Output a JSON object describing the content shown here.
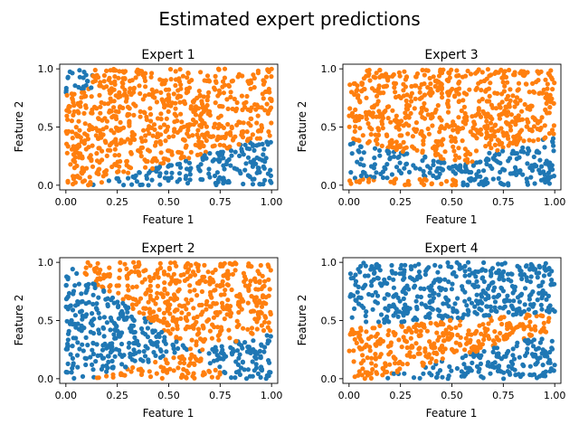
{
  "figure": {
    "suptitle": "Estimated expert predictions"
  },
  "colors": {
    "blue": "#1f77b4",
    "orange": "#ff7f0e"
  },
  "chart_data": [
    {
      "type": "scatter",
      "title": "Expert 1",
      "xlabel": "Feature 1",
      "ylabel": "Feature 2",
      "xlim": [
        -0.03,
        1.03
      ],
      "ylim": [
        -0.04,
        1.04
      ],
      "xticks": [
        0.0,
        0.25,
        0.5,
        0.75,
        1.0
      ],
      "xtick_labels": [
        "0.00",
        "0.25",
        "0.50",
        "0.75",
        "1.00"
      ],
      "yticks": [
        0.0,
        0.5,
        1.0
      ],
      "ytick_labels": [
        "0.0",
        "0.5",
        "1.0"
      ],
      "grid": false,
      "points_per_plot": 900,
      "region_rule": "blue where y < 0.45*x - 0.05 or (x < 0.14 and y > 0.8 + 0.6*(x - 0.02)) ; orange otherwise",
      "series": [
        {
          "color": "blue"
        },
        {
          "color": "orange"
        }
      ]
    },
    {
      "type": "scatter",
      "title": "Expert 3",
      "xlabel": "Feature 1",
      "ylabel": "Feature 2",
      "xlim": [
        -0.03,
        1.03
      ],
      "ylim": [
        -0.04,
        1.04
      ],
      "xticks": [
        0.0,
        0.25,
        0.5,
        0.75,
        1.0
      ],
      "xtick_labels": [
        "0.00",
        "0.25",
        "0.50",
        "0.75",
        "1.00"
      ],
      "yticks": [
        0.0,
        0.5,
        1.0
      ],
      "ytick_labels": [
        "0.0",
        "0.5",
        "1.0"
      ],
      "grid": false,
      "points_per_plot": 900,
      "region_rule": "blue where y < 0.5 - 0.5*x (upper boundary) and above lower line y > 0.45*x - 0.05, with orange strip near bottom-left; orange otherwise",
      "series": [
        {
          "color": "blue"
        },
        {
          "color": "orange"
        }
      ]
    },
    {
      "type": "scatter",
      "title": "Expert 2",
      "xlabel": "Feature 1",
      "ylabel": "Feature 2",
      "xlim": [
        -0.03,
        1.03
      ],
      "ylim": [
        -0.04,
        1.04
      ],
      "xticks": [
        0.0,
        0.25,
        0.5,
        0.75,
        1.0
      ],
      "xtick_labels": [
        "0.00",
        "0.25",
        "0.50",
        "0.75",
        "1.00"
      ],
      "yticks": [
        0.0,
        0.5,
        1.0
      ],
      "ytick_labels": [
        "0.0",
        "0.5",
        "1.0"
      ],
      "grid": false,
      "points_per_plot": 900,
      "region_rule": "blue inside left wedge between y > 0.45*x - 0.05 and y < 1 - 1.3*x, and lower-right wedge; orange otherwise",
      "series": [
        {
          "color": "blue"
        },
        {
          "color": "orange"
        }
      ]
    },
    {
      "type": "scatter",
      "title": "Expert 4",
      "xlabel": "Feature 1",
      "ylabel": "Feature 2",
      "xlim": [
        -0.03,
        1.03
      ],
      "ylim": [
        -0.04,
        1.04
      ],
      "xticks": [
        0.0,
        0.25,
        0.5,
        0.75,
        1.0
      ],
      "xtick_labels": [
        "0.00",
        "0.25",
        "0.50",
        "0.75",
        "1.00"
      ],
      "yticks": [
        0.0,
        0.5,
        1.0
      ],
      "ytick_labels": [
        "0.0",
        "0.5",
        "1.0"
      ],
      "grid": false,
      "points_per_plot": 900,
      "region_rule": "orange in band between y = 0.45*x - 0.05 and y = 0.45 + 0.1*x; blue above and below",
      "series": [
        {
          "color": "blue"
        },
        {
          "color": "orange"
        }
      ]
    }
  ]
}
